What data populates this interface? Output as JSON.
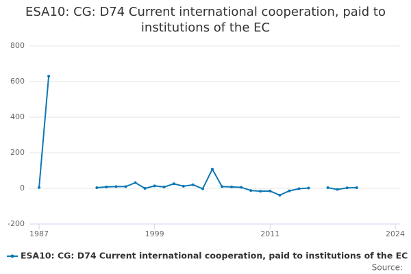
{
  "chart_data": {
    "type": "line",
    "title": "ESA10: CG: D74 Current international cooperation, paid to institutions of the EC",
    "x": [
      1987,
      1988,
      1989,
      1990,
      1991,
      1992,
      1993,
      1994,
      1995,
      1996,
      1997,
      1998,
      1999,
      2000,
      2001,
      2002,
      2003,
      2004,
      2005,
      2006,
      2007,
      2008,
      2009,
      2010,
      2011,
      2012,
      2013,
      2014,
      2015,
      2016,
      2017,
      2018,
      2019,
      2020
    ],
    "series": [
      {
        "name": "ESA10: CG: D74 Current international cooperation, paid to institutions of the EC",
        "color": "#0b77b3",
        "values": [
          5,
          630,
          null,
          null,
          null,
          null,
          4,
          8,
          10,
          10,
          32,
          0,
          14,
          8,
          26,
          12,
          20,
          -2,
          108,
          10,
          8,
          6,
          -12,
          -16,
          -15,
          -38,
          -14,
          -2,
          2,
          null,
          4,
          -6,
          3,
          4
        ]
      }
    ],
    "xlim": [
      1986,
      2024.5
    ],
    "xticks": [
      1987,
      1999,
      2011,
      2024
    ],
    "ylim": [
      -200,
      800
    ],
    "yticks": [
      -200,
      0,
      200,
      400,
      600,
      800
    ],
    "grid": true,
    "legend": "bottom",
    "source": "Source:"
  }
}
